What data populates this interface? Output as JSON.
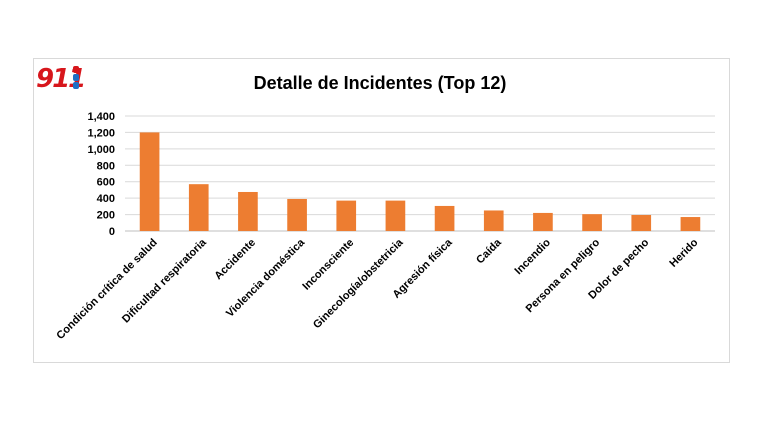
{
  "logo": {
    "text": "911",
    "icon": "911-logo-icon"
  },
  "chart_data": {
    "type": "bar",
    "title": "Detalle de Incidentes (Top 12)",
    "xlabel": "",
    "ylabel": "",
    "categories": [
      "Condición crítica de salud",
      "Dificultad respiratoria",
      "Accidente",
      "Violencia doméstica",
      "Inconsciente",
      "Ginecología/obstetricia",
      "Agresión física",
      "Caída",
      "Incendio",
      "Persona en peligro",
      "Dolor de pecho",
      "Herido"
    ],
    "values": [
      1200,
      570,
      475,
      390,
      370,
      370,
      305,
      250,
      220,
      205,
      195,
      170
    ],
    "ylim": [
      0,
      1400
    ],
    "yticks": [
      0,
      200,
      400,
      600,
      800,
      1000,
      1200,
      1400
    ],
    "ytick_labels": [
      "0",
      "200",
      "400",
      "600",
      "800",
      "1,000",
      "1,200",
      "1,400"
    ],
    "grid": true,
    "legend": "none",
    "bar_color": "#ed7d31",
    "grid_color": "#d9d9d9"
  }
}
